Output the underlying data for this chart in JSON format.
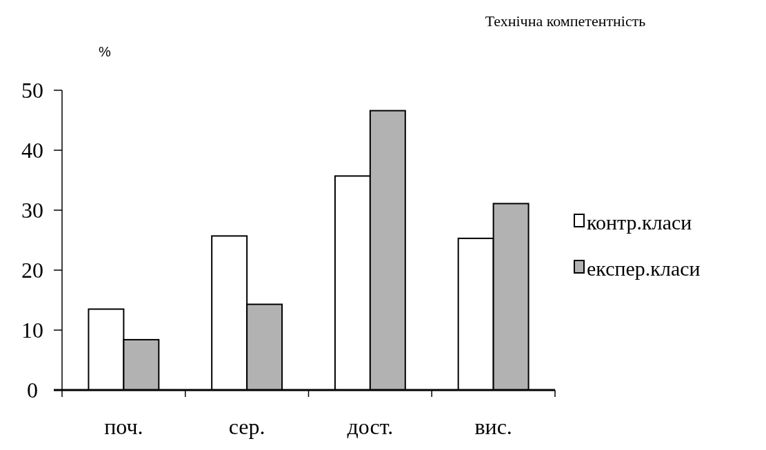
{
  "chart_data": {
    "type": "bar",
    "title": "Технічна компетентність",
    "ylabel": "%",
    "categories": [
      "поч.",
      "сер.",
      "дост.",
      "вис."
    ],
    "series": [
      {
        "name": "контр.класи",
        "color": "#ffffff",
        "values": [
          13.5,
          25.7,
          35.7,
          25.3
        ]
      },
      {
        "name": "експер.класи",
        "color": "#b2b2b2",
        "values": [
          8.4,
          14.3,
          46.6,
          31.1
        ]
      }
    ],
    "ylim": [
      0,
      50
    ],
    "yticks": [
      0,
      10,
      20,
      30,
      40,
      50
    ],
    "grid": false,
    "legend": "right"
  }
}
